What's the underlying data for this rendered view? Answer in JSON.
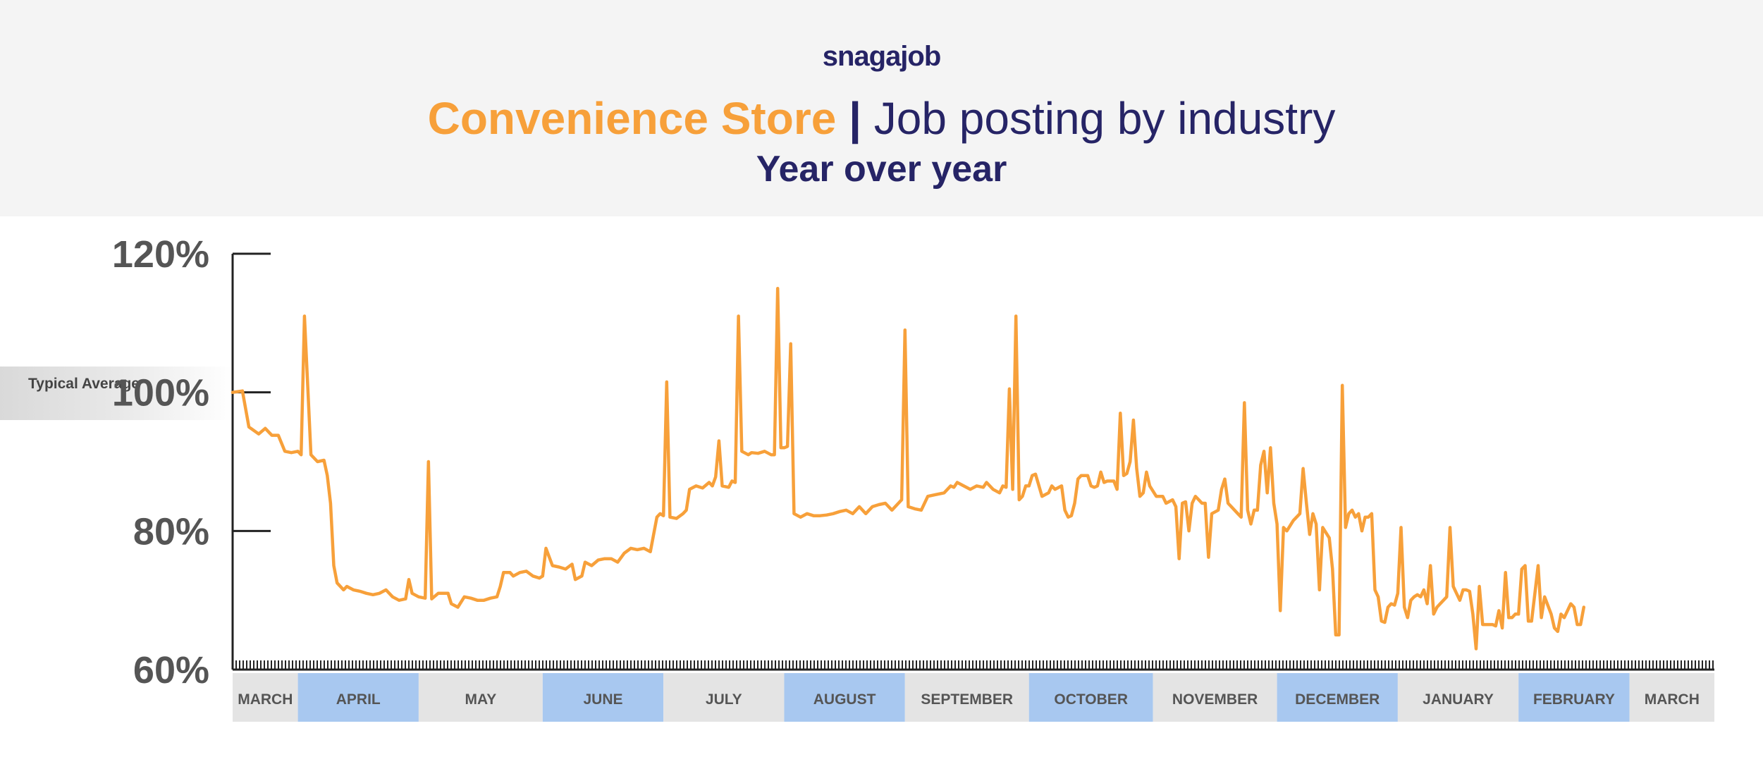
{
  "header": {
    "brand": "snagajob",
    "title_highlight": "Convenience Store",
    "title_separator": "|",
    "title_rest": "Job posting by industry",
    "subtitle": "Year over year"
  },
  "typical_label": "Typical Average",
  "colors": {
    "line": "#f7a03a",
    "brand_navy": "#262466",
    "month_band_blue": "#a8c8f0",
    "month_band_gray": "#e4e4e4",
    "axis_text": "#555555"
  },
  "chart_data": {
    "type": "line",
    "title": "Convenience Store | Job posting by industry — Year over year",
    "xlabel": "",
    "ylabel": "",
    "ylim": [
      60,
      120
    ],
    "yticks": [
      60,
      80,
      100,
      120
    ],
    "ytick_labels": [
      "60%",
      "80%",
      "100%",
      "120%"
    ],
    "reference_line": {
      "value": 100,
      "label": "Typical Average"
    },
    "months": [
      {
        "label": "MARCH",
        "start": 0,
        "end": 20,
        "band": "gray"
      },
      {
        "label": "APRIL",
        "start": 20,
        "end": 57,
        "band": "blue"
      },
      {
        "label": "MAY",
        "start": 57,
        "end": 95,
        "band": "gray"
      },
      {
        "label": "JUNE",
        "start": 95,
        "end": 132,
        "band": "blue"
      },
      {
        "label": "JULY",
        "start": 132,
        "end": 169,
        "band": "gray"
      },
      {
        "label": "AUGUST",
        "start": 169,
        "end": 206,
        "band": "blue"
      },
      {
        "label": "SEPTEMBER",
        "start": 206,
        "end": 244,
        "band": "gray"
      },
      {
        "label": "OCTOBER",
        "start": 244,
        "end": 282,
        "band": "blue"
      },
      {
        "label": "NOVEMBER",
        "start": 282,
        "end": 320,
        "band": "gray"
      },
      {
        "label": "DECEMBER",
        "start": 320,
        "end": 357,
        "band": "blue"
      },
      {
        "label": "JANUARY",
        "start": 357,
        "end": 394,
        "band": "gray"
      },
      {
        "label": "FEBRUARY",
        "start": 394,
        "end": 428,
        "band": "blue"
      },
      {
        "label": "MARCH",
        "start": 428,
        "end": 454,
        "band": "gray"
      }
    ],
    "series": [
      {
        "name": "Convenience Store",
        "points": [
          [
            0,
            100
          ],
          [
            3,
            100.2
          ],
          [
            5,
            95
          ],
          [
            8,
            94
          ],
          [
            10,
            94.8
          ],
          [
            12,
            93.8
          ],
          [
            14,
            93.8
          ],
          [
            16,
            91.5
          ],
          [
            18,
            91.3
          ],
          [
            20,
            91.5
          ],
          [
            21,
            91
          ],
          [
            22,
            111
          ],
          [
            24,
            91
          ],
          [
            26,
            90
          ],
          [
            28,
            90.2
          ],
          [
            29,
            88
          ],
          [
            30,
            84
          ],
          [
            31,
            75
          ],
          [
            32,
            72.5
          ],
          [
            34,
            71.5
          ],
          [
            35,
            72
          ],
          [
            37,
            71.5
          ],
          [
            39,
            71.3
          ],
          [
            41,
            71
          ],
          [
            43,
            70.8
          ],
          [
            45,
            71
          ],
          [
            47,
            71.5
          ],
          [
            49,
            70.5
          ],
          [
            51,
            70
          ],
          [
            53,
            70.2
          ],
          [
            54,
            73
          ],
          [
            55,
            71
          ],
          [
            57,
            70.5
          ],
          [
            59,
            70.3
          ],
          [
            60,
            90
          ],
          [
            61,
            70.2
          ],
          [
            63,
            71
          ],
          [
            66,
            71
          ],
          [
            67,
            69.5
          ],
          [
            69,
            69
          ],
          [
            71,
            70.5
          ],
          [
            73,
            70.3
          ],
          [
            75,
            70
          ],
          [
            77,
            70
          ],
          [
            79,
            70.3
          ],
          [
            81,
            70.5
          ],
          [
            82,
            72
          ],
          [
            83,
            74
          ],
          [
            85,
            74
          ],
          [
            86,
            73.5
          ],
          [
            88,
            74
          ],
          [
            90,
            74.2
          ],
          [
            92,
            73.5
          ],
          [
            94,
            73.2
          ],
          [
            95,
            73.5
          ],
          [
            96,
            77.5
          ],
          [
            98,
            75
          ],
          [
            100,
            74.8
          ],
          [
            102,
            74.5
          ],
          [
            104,
            75.2
          ],
          [
            105,
            73
          ],
          [
            107,
            73.5
          ],
          [
            108,
            75.5
          ],
          [
            110,
            75
          ],
          [
            112,
            75.8
          ],
          [
            114,
            76
          ],
          [
            116,
            76
          ],
          [
            118,
            75.5
          ],
          [
            120,
            76.8
          ],
          [
            122,
            77.5
          ],
          [
            124,
            77.3
          ],
          [
            126,
            77.5
          ],
          [
            128,
            77
          ],
          [
            130,
            82
          ],
          [
            131,
            82.5
          ],
          [
            132,
            82.2
          ],
          [
            133,
            101.5
          ],
          [
            134,
            82
          ],
          [
            136,
            81.8
          ],
          [
            138,
            82.5
          ],
          [
            139,
            83
          ],
          [
            140,
            86
          ],
          [
            142,
            86.5
          ],
          [
            144,
            86.2
          ],
          [
            146,
            87
          ],
          [
            147,
            86.5
          ],
          [
            148,
            87.8
          ],
          [
            149,
            93
          ],
          [
            150,
            86.5
          ],
          [
            152,
            86.3
          ],
          [
            153,
            87.2
          ],
          [
            154,
            87
          ],
          [
            155,
            111
          ],
          [
            156,
            91.5
          ],
          [
            158,
            91
          ],
          [
            159,
            91.3
          ],
          [
            161,
            91.2
          ],
          [
            163,
            91.5
          ],
          [
            165,
            91
          ],
          [
            166,
            91
          ],
          [
            167,
            115
          ],
          [
            168,
            92
          ],
          [
            169,
            92
          ],
          [
            170,
            92.2
          ],
          [
            171,
            107
          ],
          [
            172,
            82.5
          ],
          [
            174,
            82
          ],
          [
            176,
            82.5
          ],
          [
            178,
            82.2
          ],
          [
            180,
            82.2
          ],
          [
            182,
            82.3
          ],
          [
            184,
            82.5
          ],
          [
            186,
            82.8
          ],
          [
            188,
            83
          ],
          [
            190,
            82.5
          ],
          [
            192,
            83.5
          ],
          [
            194,
            82.5
          ],
          [
            196,
            83.5
          ],
          [
            198,
            83.8
          ],
          [
            200,
            84
          ],
          [
            202,
            83
          ],
          [
            204,
            84
          ],
          [
            205,
            84.5
          ],
          [
            206,
            109
          ],
          [
            207,
            83.5
          ],
          [
            209,
            83.2
          ],
          [
            211,
            83
          ],
          [
            213,
            85
          ],
          [
            215,
            85.2
          ],
          [
            218,
            85.5
          ],
          [
            220,
            86.5
          ],
          [
            221,
            86.3
          ],
          [
            222,
            87
          ],
          [
            224,
            86.5
          ],
          [
            226,
            86
          ],
          [
            228,
            86.5
          ],
          [
            230,
            86.3
          ],
          [
            231,
            87
          ],
          [
            233,
            86
          ],
          [
            235,
            85.5
          ],
          [
            236,
            86.5
          ],
          [
            237,
            86.3
          ],
          [
            238,
            100.5
          ],
          [
            239,
            86
          ],
          [
            240,
            111
          ],
          [
            241,
            84.5
          ],
          [
            242,
            85
          ],
          [
            243,
            86.5
          ],
          [
            244,
            86.5
          ],
          [
            245,
            88
          ],
          [
            246,
            88.2
          ],
          [
            248,
            85
          ],
          [
            250,
            85.5
          ],
          [
            251,
            86.5
          ],
          [
            252,
            86
          ],
          [
            254,
            86.5
          ],
          [
            255,
            83
          ],
          [
            256,
            82
          ],
          [
            257,
            82.2
          ],
          [
            258,
            84
          ],
          [
            259,
            87.5
          ],
          [
            260,
            88
          ],
          [
            262,
            88
          ],
          [
            263,
            86.5
          ],
          [
            264,
            86.3
          ],
          [
            265,
            86.5
          ],
          [
            266,
            88.5
          ],
          [
            267,
            87
          ],
          [
            268,
            87.2
          ],
          [
            270,
            87.2
          ],
          [
            271,
            86
          ],
          [
            272,
            97
          ],
          [
            273,
            88
          ],
          [
            274,
            88.3
          ],
          [
            275,
            90
          ],
          [
            276,
            96
          ],
          [
            277,
            89
          ],
          [
            278,
            85
          ],
          [
            279,
            85.5
          ],
          [
            280,
            88.5
          ],
          [
            281,
            86.5
          ],
          [
            283,
            85
          ],
          [
            285,
            85
          ],
          [
            286,
            84
          ],
          [
            288,
            84.5
          ],
          [
            289,
            83.5
          ],
          [
            290,
            76
          ],
          [
            291,
            84
          ],
          [
            292,
            84.2
          ],
          [
            293,
            80
          ],
          [
            294,
            84
          ],
          [
            295,
            85
          ],
          [
            296,
            84.5
          ],
          [
            297,
            84
          ],
          [
            298,
            84
          ],
          [
            299,
            76.2
          ],
          [
            300,
            82.5
          ],
          [
            302,
            83
          ],
          [
            303,
            86
          ],
          [
            304,
            87.5
          ],
          [
            305,
            84
          ],
          [
            306,
            83.5
          ],
          [
            308,
            82.5
          ],
          [
            309,
            82
          ],
          [
            310,
            98.5
          ],
          [
            311,
            83
          ],
          [
            312,
            81
          ],
          [
            313,
            83
          ],
          [
            314,
            83
          ],
          [
            315,
            89.5
          ],
          [
            316,
            91.5
          ],
          [
            317,
            85.5
          ],
          [
            318,
            92
          ],
          [
            319,
            84
          ],
          [
            320,
            81
          ],
          [
            321,
            68.5
          ],
          [
            322,
            80.5
          ],
          [
            323,
            80
          ],
          [
            325,
            81.5
          ],
          [
            327,
            82.5
          ],
          [
            328,
            89
          ],
          [
            329,
            84
          ],
          [
            330,
            79.5
          ],
          [
            331,
            82.5
          ],
          [
            332,
            81
          ],
          [
            333,
            71.5
          ],
          [
            334,
            80.5
          ],
          [
            336,
            79
          ],
          [
            337,
            74.5
          ],
          [
            338,
            65
          ],
          [
            339,
            65
          ],
          [
            340,
            101
          ],
          [
            341,
            80.5
          ],
          [
            342,
            82.5
          ],
          [
            343,
            83
          ],
          [
            344,
            82
          ],
          [
            345,
            82.5
          ],
          [
            346,
            80
          ],
          [
            347,
            82
          ],
          [
            348,
            82
          ],
          [
            349,
            82.5
          ],
          [
            350,
            71.5
          ],
          [
            351,
            70.5
          ],
          [
            352,
            67
          ],
          [
            353,
            66.8
          ],
          [
            354,
            69
          ],
          [
            355,
            69.5
          ],
          [
            356,
            69.3
          ],
          [
            357,
            71
          ],
          [
            358,
            80.5
          ],
          [
            359,
            69
          ],
          [
            360,
            67.5
          ],
          [
            361,
            70
          ],
          [
            362,
            70.5
          ],
          [
            363,
            70.8
          ],
          [
            364,
            70.5
          ],
          [
            365,
            71.5
          ],
          [
            366,
            69.5
          ],
          [
            367,
            75
          ],
          [
            368,
            68
          ],
          [
            369,
            69
          ],
          [
            370,
            69.5
          ],
          [
            371,
            70
          ],
          [
            372,
            70.5
          ],
          [
            373,
            80.5
          ],
          [
            374,
            72
          ],
          [
            375,
            71
          ],
          [
            376,
            70
          ],
          [
            377,
            71.5
          ],
          [
            378,
            71.5
          ],
          [
            379,
            71.3
          ],
          [
            380,
            68
          ],
          [
            381,
            63
          ],
          [
            382,
            72
          ],
          [
            383,
            66.5
          ],
          [
            384,
            66.5
          ],
          [
            386,
            66.5
          ],
          [
            387,
            66.3
          ],
          [
            388,
            68.5
          ],
          [
            389,
            66
          ],
          [
            390,
            74
          ],
          [
            391,
            67.5
          ],
          [
            392,
            67.5
          ],
          [
            393,
            68
          ],
          [
            394,
            68
          ],
          [
            395,
            74.5
          ],
          [
            396,
            75
          ],
          [
            397,
            67
          ],
          [
            398,
            67
          ],
          [
            399,
            71
          ],
          [
            400,
            75
          ],
          [
            401,
            67.5
          ],
          [
            402,
            70.5
          ],
          [
            404,
            68
          ],
          [
            405,
            66
          ],
          [
            406,
            65.5
          ],
          [
            407,
            68
          ],
          [
            408,
            67.5
          ],
          [
            409,
            68.5
          ],
          [
            410,
            69.5
          ],
          [
            411,
            69
          ],
          [
            412,
            66.5
          ],
          [
            413,
            66.5
          ],
          [
            414,
            69
          ]
        ]
      }
    ]
  }
}
